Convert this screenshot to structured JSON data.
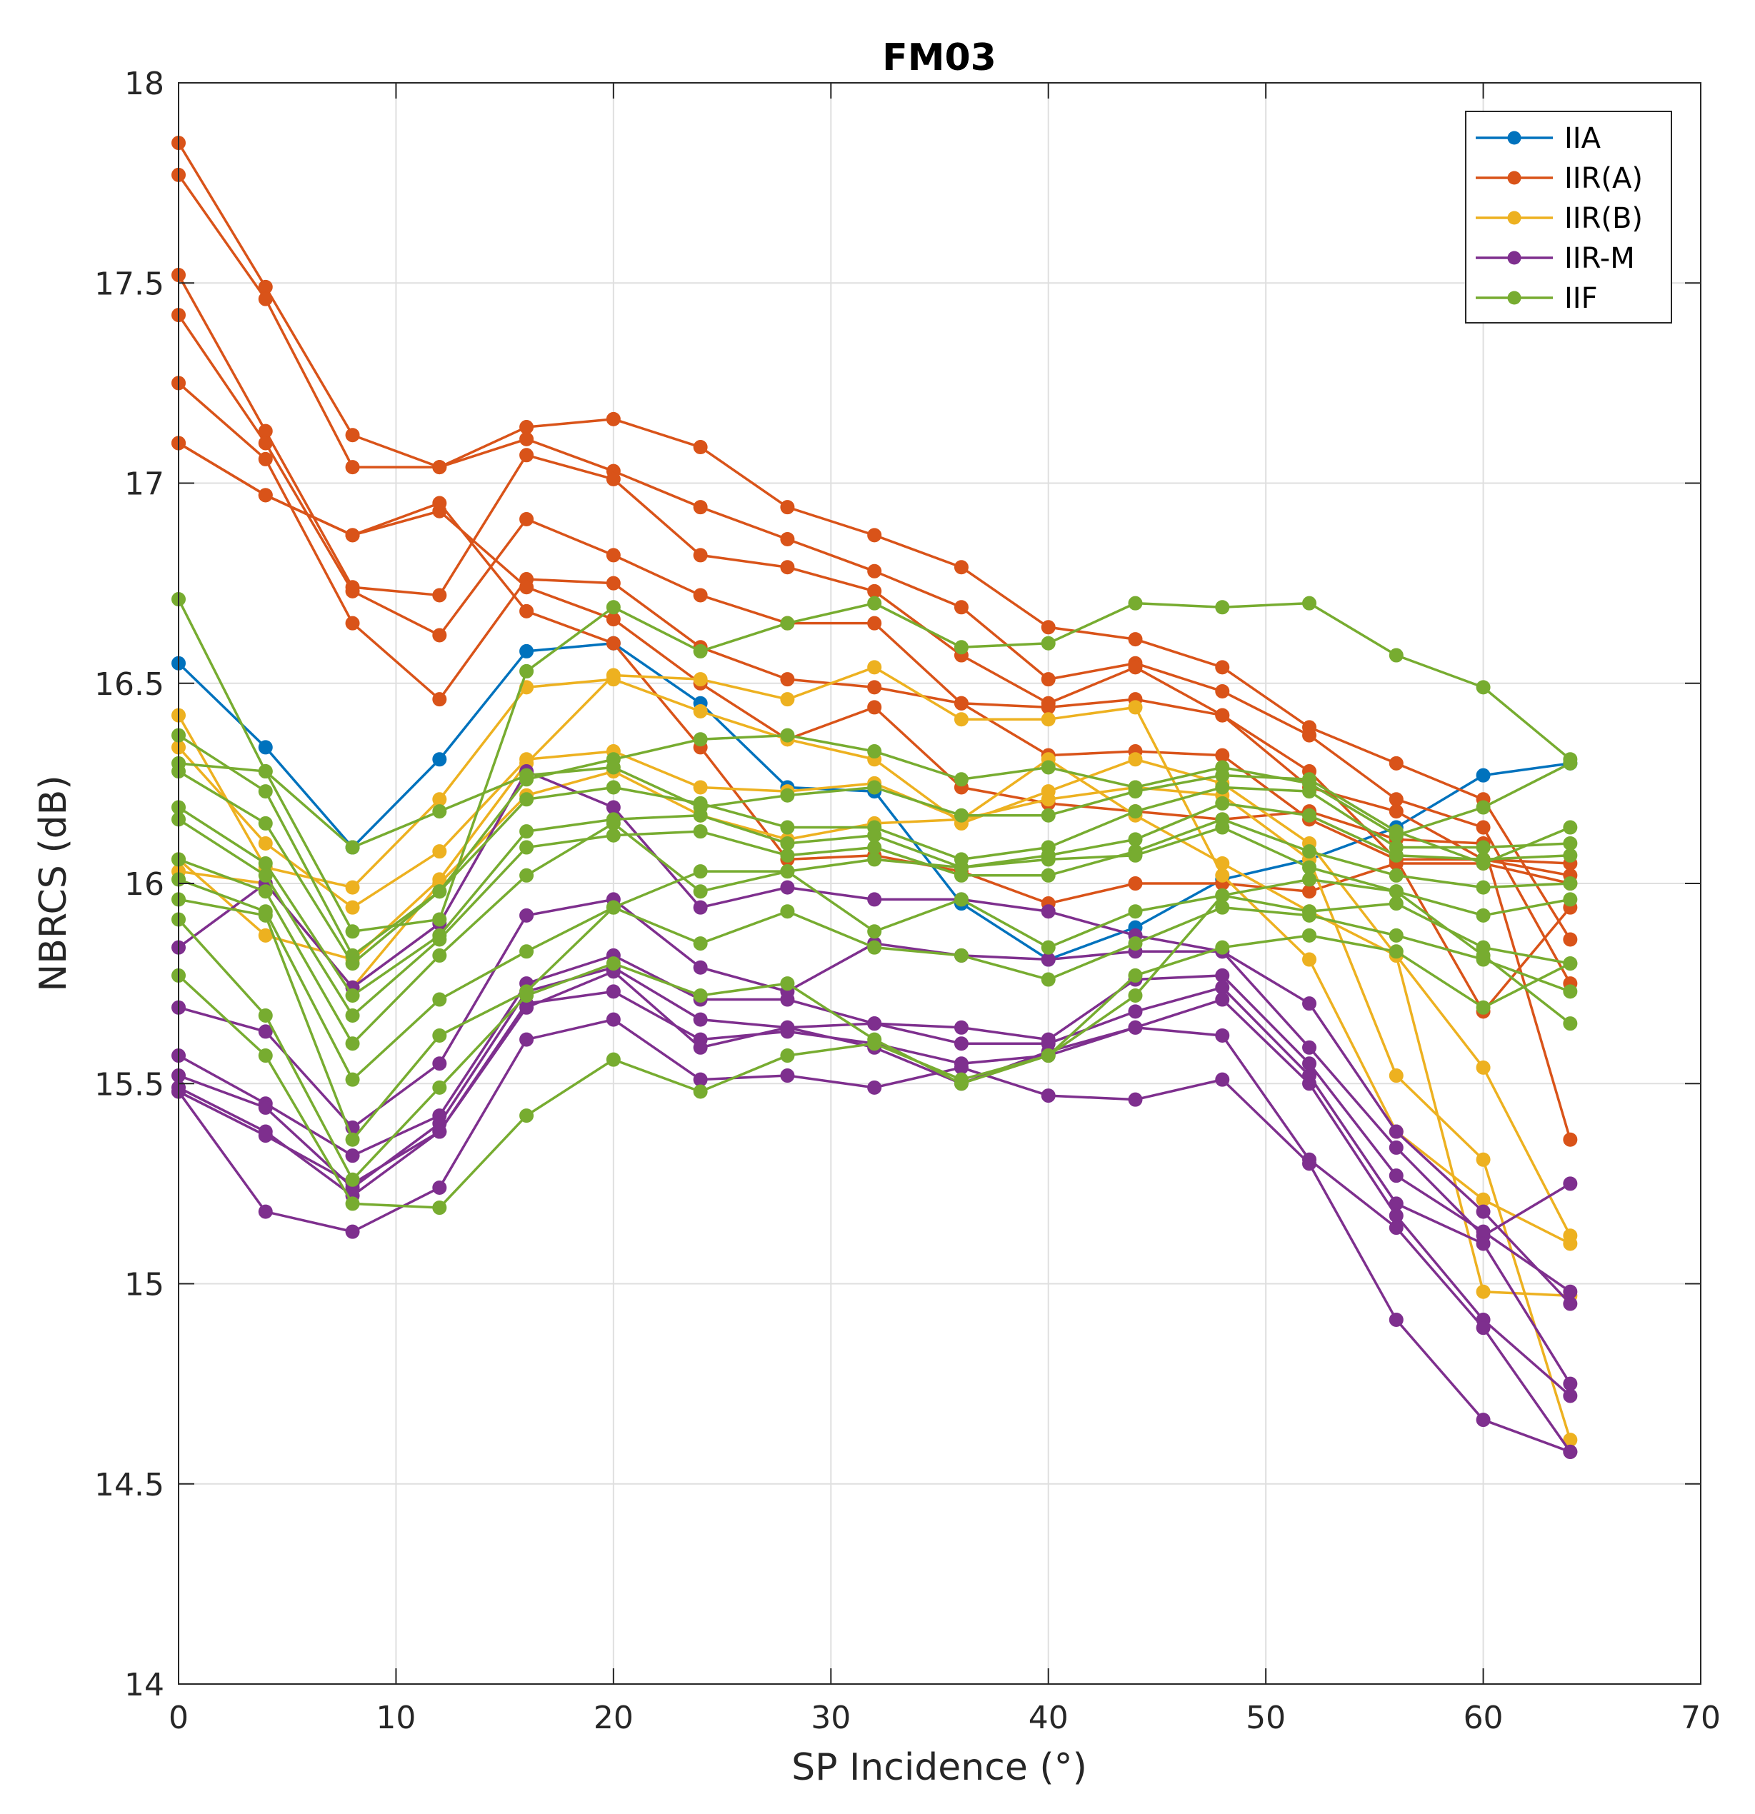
{
  "chart_data": {
    "type": "line",
    "title": "FM03",
    "xlabel": "SP Incidence (°)",
    "ylabel": "NBRCS (dB)",
    "xlim": [
      0,
      70
    ],
    "ylim": [
      14,
      18
    ],
    "xticks": [
      0,
      10,
      20,
      30,
      40,
      50,
      60,
      70
    ],
    "yticks": [
      14,
      14.5,
      15,
      15.5,
      16,
      16.5,
      17,
      17.5,
      18
    ],
    "grid": true,
    "legend_position": "top-right",
    "x": [
      0,
      4,
      8,
      12,
      16,
      20,
      24,
      28,
      32,
      36,
      40,
      44,
      48,
      52,
      56,
      60,
      64
    ],
    "groups": [
      {
        "name": "IIA",
        "color": "#0072BD"
      },
      {
        "name": "IIR(A)",
        "color": "#D95319"
      },
      {
        "name": "IIR(B)",
        "color": "#EDB120"
      },
      {
        "name": "IIR-M",
        "color": "#7E2F8E"
      },
      {
        "name": "IIF",
        "color": "#77AC30"
      }
    ],
    "series": [
      {
        "group": "IIA",
        "values": [
          16.55,
          16.34,
          16.09,
          16.31,
          16.58,
          16.6,
          16.45,
          16.24,
          16.23,
          15.95,
          15.81,
          15.89,
          16.01,
          16.06,
          16.14,
          16.27,
          16.3
        ]
      },
      {
        "group": "IIR(A)",
        "values": [
          17.85,
          17.49,
          17.12,
          17.04,
          17.14,
          17.16,
          17.09,
          16.94,
          16.87,
          16.79,
          16.64,
          16.61,
          16.54,
          16.39,
          16.3,
          16.21,
          15.86
        ]
      },
      {
        "group": "IIR(A)",
        "values": [
          17.77,
          17.46,
          17.04,
          17.04,
          17.11,
          17.03,
          16.94,
          16.86,
          16.78,
          16.69,
          16.51,
          16.55,
          16.48,
          16.37,
          16.21,
          16.14,
          15.75
        ]
      },
      {
        "group": "IIR(A)",
        "values": [
          17.52,
          17.13,
          16.74,
          16.72,
          17.07,
          17.01,
          16.82,
          16.79,
          16.73,
          16.57,
          16.45,
          16.54,
          16.42,
          16.24,
          16.18,
          16.06,
          16.05
        ]
      },
      {
        "group": "IIR(A)",
        "values": [
          17.42,
          17.1,
          16.73,
          16.62,
          16.91,
          16.82,
          16.72,
          16.65,
          16.65,
          16.45,
          16.44,
          16.46,
          16.42,
          16.28,
          16.06,
          16.06,
          16.02
        ]
      },
      {
        "group": "IIR(A)",
        "values": [
          17.25,
          17.06,
          16.65,
          16.46,
          16.76,
          16.75,
          16.59,
          16.51,
          16.49,
          16.45,
          16.32,
          16.33,
          16.32,
          16.16,
          16.06,
          15.68,
          15.94
        ]
      },
      {
        "group": "IIR(A)",
        "values": [
          17.1,
          16.97,
          16.87,
          16.93,
          16.74,
          16.66,
          16.5,
          16.36,
          16.44,
          16.24,
          16.2,
          16.18,
          16.16,
          16.18,
          16.11,
          16.1,
          15.36
        ]
      },
      {
        "group": "IIR(A)",
        "values": [
          17.1,
          16.97,
          16.87,
          16.95,
          16.68,
          16.6,
          16.34,
          16.06,
          16.07,
          16.03,
          15.95,
          16.0,
          16.0,
          15.98,
          16.05,
          16.05,
          16.0
        ]
      },
      {
        "group": "IIR(B)",
        "values": [
          16.42,
          16.04,
          15.99,
          16.21,
          16.49,
          16.51,
          16.43,
          16.36,
          16.31,
          16.15,
          16.23,
          16.31,
          16.25,
          16.1,
          15.82,
          15.54,
          15.12
        ]
      },
      {
        "group": "IIR(B)",
        "values": [
          16.34,
          16.1,
          15.94,
          16.08,
          16.31,
          16.33,
          16.24,
          16.23,
          16.25,
          16.16,
          16.21,
          16.24,
          16.22,
          16.06,
          15.52,
          15.31,
          14.61
        ]
      },
      {
        "group": "IIR(B)",
        "values": [
          16.06,
          15.87,
          15.81,
          16.01,
          16.3,
          16.52,
          16.51,
          16.46,
          16.54,
          16.41,
          16.41,
          16.44,
          16.02,
          15.81,
          15.38,
          15.21,
          15.1
        ]
      },
      {
        "group": "IIR(B)",
        "values": [
          16.03,
          16.0,
          15.74,
          16.0,
          16.22,
          16.28,
          16.17,
          16.11,
          16.15,
          16.16,
          16.31,
          16.17,
          16.05,
          15.93,
          15.82,
          14.98,
          14.97
        ]
      },
      {
        "group": "IIR-M",
        "values": [
          15.84,
          16.0,
          15.74,
          15.9,
          16.28,
          16.19,
          15.94,
          15.99,
          15.96,
          15.96,
          15.93,
          15.87,
          15.83,
          15.7,
          15.38,
          15.18,
          14.95
        ]
      },
      {
        "group": "IIR-M",
        "values": [
          15.69,
          15.63,
          15.39,
          15.55,
          15.92,
          15.96,
          15.79,
          15.73,
          15.85,
          15.82,
          15.81,
          15.83,
          15.83,
          15.59,
          15.34,
          15.12,
          15.25
        ]
      },
      {
        "group": "IIR-M",
        "values": [
          15.57,
          15.45,
          15.32,
          15.42,
          15.75,
          15.82,
          15.71,
          15.71,
          15.65,
          15.64,
          15.61,
          15.76,
          15.77,
          15.55,
          15.27,
          15.13,
          14.98
        ]
      },
      {
        "group": "IIR-M",
        "values": [
          15.52,
          15.44,
          15.24,
          15.4,
          15.73,
          15.79,
          15.66,
          15.64,
          15.65,
          15.6,
          15.6,
          15.68,
          15.74,
          15.52,
          15.2,
          15.1,
          14.75
        ]
      },
      {
        "group": "IIR-M",
        "values": [
          15.49,
          15.38,
          15.22,
          15.38,
          15.7,
          15.73,
          15.61,
          15.63,
          15.6,
          15.55,
          15.57,
          15.64,
          15.71,
          15.5,
          15.17,
          14.91,
          14.72
        ]
      },
      {
        "group": "IIR-M",
        "values": [
          15.48,
          15.18,
          15.13,
          15.24,
          15.61,
          15.66,
          15.51,
          15.52,
          15.49,
          15.54,
          15.47,
          15.46,
          15.51,
          15.3,
          14.91,
          14.66,
          14.58
        ]
      },
      {
        "group": "IIR-M",
        "values": [
          15.48,
          15.37,
          15.25,
          15.38,
          15.69,
          15.78,
          15.59,
          15.64,
          15.59,
          15.5,
          15.58,
          15.64,
          15.62,
          15.31,
          15.14,
          14.89,
          14.58
        ]
      },
      {
        "group": "IIF",
        "values": [
          16.71,
          16.28,
          15.88,
          15.91,
          16.53,
          16.69,
          16.58,
          16.65,
          16.7,
          16.59,
          16.6,
          16.7,
          16.69,
          16.7,
          16.57,
          16.49,
          16.31
        ]
      },
      {
        "group": "IIF",
        "values": [
          16.37,
          16.23,
          15.82,
          15.98,
          16.26,
          16.31,
          16.36,
          16.37,
          16.33,
          16.26,
          16.29,
          16.24,
          16.29,
          16.25,
          16.12,
          16.19,
          16.3
        ]
      },
      {
        "group": "IIF",
        "values": [
          16.3,
          16.28,
          16.09,
          16.18,
          16.27,
          16.29,
          16.19,
          16.22,
          16.24,
          16.17,
          16.17,
          16.23,
          16.27,
          16.26,
          16.13,
          16.05,
          16.14
        ]
      },
      {
        "group": "IIF",
        "values": [
          16.28,
          16.15,
          15.8,
          15.98,
          16.21,
          16.24,
          16.2,
          16.14,
          16.14,
          16.06,
          16.09,
          16.18,
          16.24,
          16.23,
          16.09,
          16.09,
          16.1
        ]
      },
      {
        "group": "IIF",
        "values": [
          16.19,
          16.05,
          15.72,
          15.87,
          16.13,
          16.16,
          16.17,
          16.1,
          16.12,
          16.04,
          16.07,
          16.11,
          16.2,
          16.17,
          16.07,
          16.06,
          16.07
        ]
      },
      {
        "group": "IIF",
        "values": [
          16.16,
          16.02,
          15.67,
          15.86,
          16.09,
          16.12,
          16.13,
          16.07,
          16.09,
          16.02,
          16.02,
          16.08,
          16.16,
          16.08,
          16.02,
          15.99,
          16.0
        ]
      },
      {
        "group": "IIF",
        "values": [
          16.06,
          15.98,
          15.6,
          15.82,
          16.02,
          16.15,
          15.98,
          16.03,
          16.06,
          16.04,
          16.06,
          16.07,
          16.14,
          16.04,
          15.98,
          15.92,
          15.96
        ]
      },
      {
        "group": "IIF",
        "values": [
          16.01,
          15.93,
          15.51,
          15.71,
          15.83,
          15.94,
          16.03,
          16.03,
          15.88,
          15.96,
          15.84,
          15.93,
          15.97,
          15.93,
          15.95,
          15.84,
          15.8
        ]
      },
      {
        "group": "IIF",
        "values": [
          15.96,
          15.92,
          15.36,
          15.62,
          15.73,
          15.94,
          15.85,
          15.93,
          15.84,
          15.82,
          15.76,
          15.85,
          15.94,
          15.92,
          15.87,
          15.81,
          15.73
        ]
      },
      {
        "group": "IIF",
        "values": [
          15.91,
          15.67,
          15.26,
          15.49,
          15.72,
          15.8,
          15.72,
          15.75,
          15.61,
          15.5,
          15.57,
          15.77,
          15.84,
          15.87,
          15.83,
          15.69,
          15.8
        ]
      },
      {
        "group": "IIF",
        "values": [
          15.77,
          15.57,
          15.2,
          15.19,
          15.42,
          15.56,
          15.48,
          15.57,
          15.6,
          15.51,
          15.57,
          15.72,
          15.97,
          16.01,
          15.98,
          15.82,
          15.65
        ]
      }
    ]
  }
}
